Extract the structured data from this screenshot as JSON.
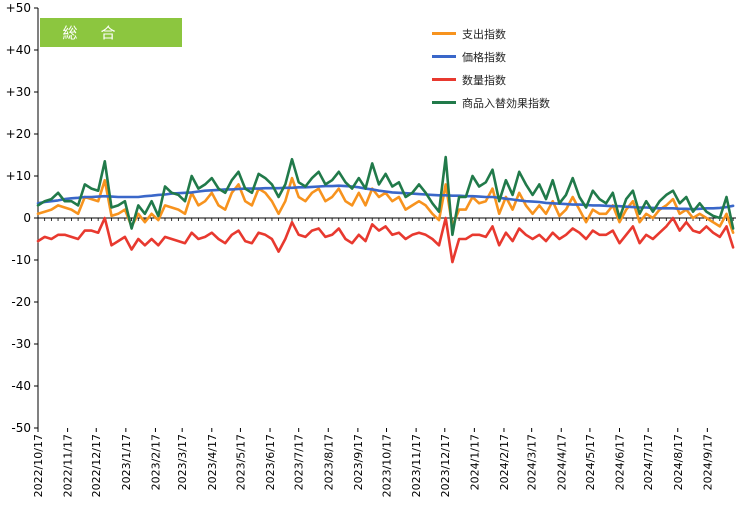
{
  "badge": {
    "label": "総　合",
    "color": "#8cc63f"
  },
  "chart_data": {
    "type": "line",
    "y_ticks": [
      "+50",
      "+40",
      "+30",
      "+20",
      "+10",
      "0",
      "-10",
      "-20",
      "-30",
      "-40",
      "-50"
    ],
    "ylim": [
      -50,
      50
    ],
    "grid": false,
    "legend_position": "top-right",
    "x_ticks": [
      "2022/10/17",
      "2022/11/17",
      "2022/12/17",
      "2023/1/17",
      "2023/2/17",
      "2023/3/17",
      "2023/4/17",
      "2023/5/17",
      "2023/6/17",
      "2023/7/17",
      "2023/8/17",
      "2023/9/17",
      "2023/10/17",
      "2023/11/17",
      "2023/12/17",
      "2024/1/17",
      "2024/2/17",
      "2024/3/17",
      "2024/4/17",
      "2024/5/17",
      "2024/6/17",
      "2024/7/17",
      "2024/8/17",
      "2024/9/17"
    ],
    "x_start": "2022/10/17",
    "x_step_days": 7,
    "series": [
      {
        "name": "支出指数",
        "color": "#f7931e",
        "values": [
          1.0,
          1.5,
          2.0,
          3.0,
          2.5,
          2.0,
          1.0,
          5.0,
          4.5,
          4.0,
          9.0,
          0.5,
          1.0,
          2.0,
          -2.0,
          1.0,
          -1.0,
          1.0,
          -0.5,
          3.0,
          2.5,
          2.0,
          1.0,
          6.0,
          3.0,
          4.0,
          6.0,
          3.0,
          2.0,
          6.0,
          8.0,
          4.0,
          3.0,
          7.0,
          6.0,
          4.0,
          1.0,
          4.0,
          9.5,
          5.0,
          4.0,
          6.0,
          7.0,
          4.0,
          5.0,
          7.0,
          4.0,
          3.0,
          6.0,
          3.0,
          7.0,
          5.0,
          6.0,
          4.0,
          5.0,
          2.0,
          3.0,
          4.0,
          3.0,
          1.0,
          -0.5,
          8.0,
          -2.0,
          2.0,
          2.0,
          5.0,
          3.5,
          4.0,
          7.0,
          1.0,
          5.0,
          2.0,
          6.0,
          3.0,
          1.0,
          3.0,
          1.0,
          4.0,
          0.5,
          2.0,
          5.0,
          2.0,
          -1.0,
          2.0,
          1.0,
          1.0,
          3.0,
          -1.0,
          2.0,
          4.0,
          -1.0,
          1.0,
          0.0,
          2.0,
          3.0,
          4.5,
          1.0,
          2.0,
          0.0,
          1.0,
          0.0,
          -1.0,
          -2.0,
          1.0,
          -3.5
        ]
      },
      {
        "name": "価格指数",
        "color": "#3a67c9",
        "values": [
          3.5,
          3.8,
          4.0,
          4.2,
          4.5,
          4.7,
          4.8,
          5.0,
          5.0,
          5.1,
          5.2,
          5.1,
          5.0,
          5.0,
          5.0,
          5.0,
          5.2,
          5.3,
          5.5,
          5.6,
          5.8,
          5.9,
          6.0,
          6.1,
          6.3,
          6.5,
          6.6,
          6.7,
          6.8,
          6.8,
          6.9,
          7.0,
          7.0,
          7.0,
          7.1,
          7.1,
          7.1,
          7.2,
          7.2,
          7.3,
          7.3,
          7.4,
          7.5,
          7.6,
          7.6,
          7.7,
          7.6,
          7.5,
          7.3,
          7.0,
          6.8,
          6.5,
          6.3,
          6.1,
          6.0,
          5.9,
          5.8,
          5.7,
          5.6,
          5.5,
          5.4,
          5.4,
          5.3,
          5.3,
          5.2,
          5.2,
          5.1,
          5.0,
          5.0,
          4.8,
          4.6,
          4.4,
          4.2,
          4.0,
          3.9,
          3.8,
          3.6,
          3.5,
          3.4,
          3.3,
          3.2,
          3.2,
          3.1,
          3.0,
          3.0,
          2.9,
          2.8,
          2.8,
          2.7,
          2.6,
          2.5,
          2.5,
          2.4,
          2.3,
          2.3,
          2.3,
          2.2,
          2.2,
          2.1,
          2.2,
          2.3,
          2.3,
          2.4,
          2.6,
          2.9
        ]
      },
      {
        "name": "数量指数",
        "color": "#e8392f",
        "values": [
          -5.5,
          -4.5,
          -5.0,
          -4.0,
          -4.0,
          -4.5,
          -5.0,
          -3.0,
          -3.0,
          -3.5,
          0.0,
          -6.5,
          -5.5,
          -4.5,
          -7.5,
          -5.0,
          -6.5,
          -5.0,
          -6.5,
          -4.5,
          -5.0,
          -5.5,
          -6.0,
          -3.5,
          -5.0,
          -4.5,
          -3.5,
          -5.0,
          -6.0,
          -4.0,
          -3.0,
          -5.5,
          -6.0,
          -3.5,
          -4.0,
          -5.0,
          -8.0,
          -5.0,
          -1.0,
          -4.0,
          -4.5,
          -3.0,
          -2.5,
          -4.5,
          -4.0,
          -2.5,
          -5.0,
          -6.0,
          -4.0,
          -5.5,
          -1.5,
          -3.0,
          -2.0,
          -4.0,
          -3.5,
          -5.0,
          -4.0,
          -3.5,
          -4.0,
          -5.0,
          -6.5,
          0.0,
          -10.5,
          -5.0,
          -5.0,
          -4.0,
          -4.0,
          -4.5,
          -2.0,
          -6.5,
          -3.5,
          -5.5,
          -2.5,
          -4.0,
          -5.0,
          -4.0,
          -5.5,
          -3.5,
          -5.0,
          -4.0,
          -2.5,
          -3.5,
          -5.0,
          -3.0,
          -4.0,
          -4.0,
          -3.0,
          -6.0,
          -4.0,
          -2.0,
          -6.0,
          -4.0,
          -5.0,
          -3.5,
          -2.0,
          0.0,
          -3.0,
          -1.0,
          -3.0,
          -3.5,
          -2.0,
          -3.5,
          -4.5,
          -2.0,
          -7.0
        ]
      },
      {
        "name": "商品入替効果指数",
        "color": "#217a4a",
        "values": [
          3.0,
          4.0,
          4.5,
          6.0,
          4.0,
          4.0,
          3.0,
          8.0,
          7.0,
          6.5,
          13.5,
          2.5,
          3.0,
          4.0,
          -2.5,
          3.0,
          1.0,
          4.0,
          0.5,
          7.5,
          6.0,
          5.5,
          4.0,
          10.0,
          7.0,
          8.0,
          9.5,
          7.0,
          6.0,
          9.0,
          11.0,
          7.0,
          6.0,
          10.5,
          9.5,
          8.0,
          5.0,
          8.0,
          14.0,
          8.5,
          7.5,
          9.5,
          11.0,
          8.0,
          9.0,
          11.0,
          8.5,
          7.0,
          9.5,
          7.0,
          13.0,
          8.0,
          10.5,
          7.5,
          8.5,
          5.0,
          6.0,
          8.0,
          6.0,
          3.5,
          1.5,
          14.5,
          -4.0,
          5.0,
          5.0,
          10.0,
          7.5,
          8.5,
          11.5,
          4.0,
          9.0,
          5.5,
          11.0,
          8.0,
          5.5,
          8.0,
          4.5,
          9.0,
          3.5,
          5.5,
          9.5,
          5.0,
          2.5,
          6.5,
          4.5,
          3.5,
          6.0,
          0.0,
          4.5,
          6.5,
          1.0,
          4.0,
          1.5,
          4.0,
          5.5,
          6.5,
          3.5,
          5.0,
          1.5,
          3.5,
          1.5,
          0.5,
          0.0,
          5.0,
          -2.5
        ]
      }
    ]
  }
}
